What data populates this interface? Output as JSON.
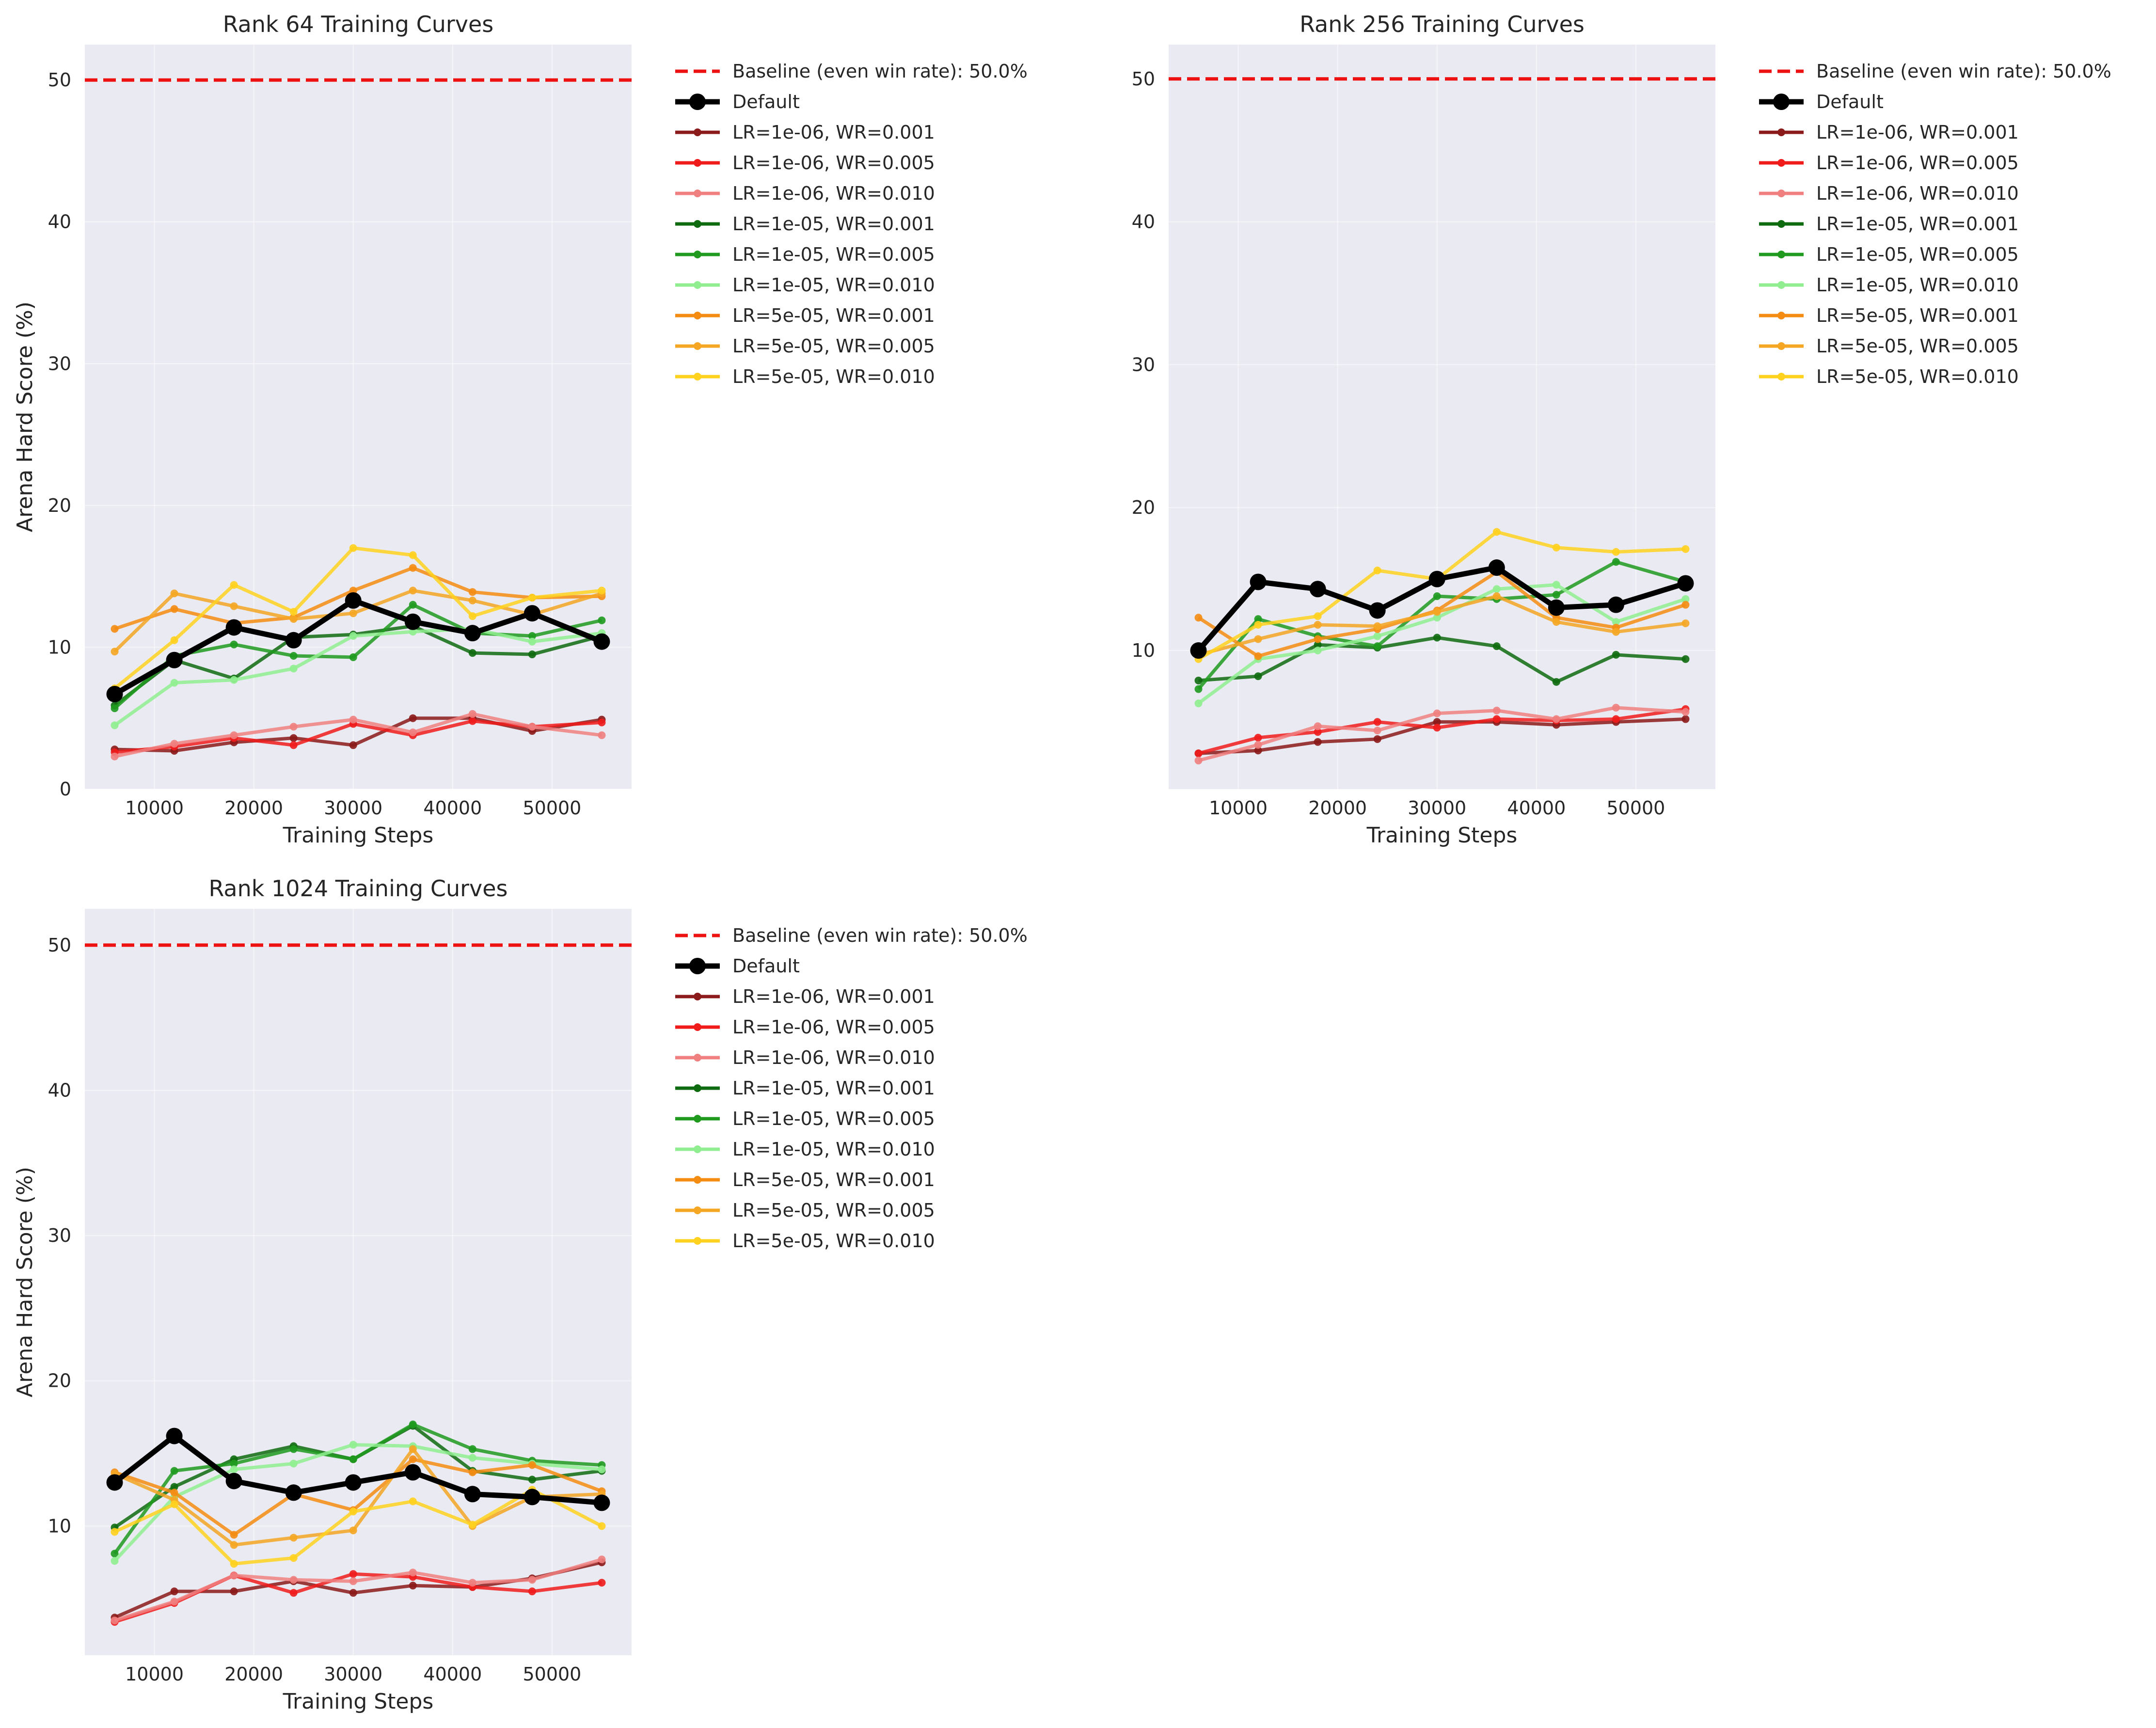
{
  "chart_data": [
    {
      "type": "line",
      "title": "Rank 64 Training Curves",
      "xlabel": "Training Steps",
      "ylabel": "Arena Hard Score (%)",
      "xlim": [
        3000,
        58000
      ],
      "ylim": [
        0,
        52.5
      ],
      "xticks": [
        10000,
        20000,
        30000,
        40000,
        50000
      ],
      "yticks": [
        0,
        10,
        20,
        30,
        40,
        50
      ],
      "grid": true,
      "legend_position": "outside-right",
      "x": [
        6000,
        12000,
        18000,
        24000,
        30000,
        36000,
        42000,
        48000,
        55000
      ],
      "baseline": {
        "name": "Baseline (even win rate): 50.0%",
        "value": 50,
        "color": "#ee1111"
      },
      "series": [
        {
          "name": "Default",
          "color": "#000000",
          "values": [
            6.7,
            9.1,
            11.4,
            10.5,
            13.3,
            11.8,
            11.0,
            12.4,
            10.4
          ]
        },
        {
          "name": "LR=1e-06, WR=0.001",
          "color": "#8b1a1a",
          "values": [
            2.8,
            2.7,
            3.3,
            3.6,
            3.1,
            5.0,
            5.0,
            4.1,
            4.9
          ]
        },
        {
          "name": "LR=1e-06, WR=0.005",
          "color": "#f01c1c",
          "values": [
            2.6,
            3.0,
            3.6,
            3.1,
            4.6,
            3.8,
            4.8,
            4.4,
            4.7
          ]
        },
        {
          "name": "LR=1e-06, WR=0.010",
          "color": "#f08080",
          "values": [
            2.3,
            3.2,
            3.8,
            4.4,
            4.9,
            4.0,
            5.3,
            4.4,
            3.8
          ]
        },
        {
          "name": "LR=1e-05, WR=0.001",
          "color": "#0f6b0f",
          "values": [
            5.9,
            9.1,
            7.8,
            10.7,
            10.9,
            11.5,
            9.6,
            9.5,
            10.8
          ]
        },
        {
          "name": "LR=1e-05, WR=0.005",
          "color": "#1f9a1f",
          "values": [
            5.7,
            9.4,
            10.2,
            9.4,
            9.3,
            13.0,
            11.0,
            10.8,
            11.9
          ]
        },
        {
          "name": "LR=1e-05, WR=0.010",
          "color": "#90ee90",
          "values": [
            4.5,
            7.5,
            7.7,
            8.5,
            10.8,
            11.1,
            11.3,
            10.4,
            11.0
          ]
        },
        {
          "name": "LR=5e-05, WR=0.001",
          "color": "#f48c12",
          "values": [
            11.3,
            12.7,
            11.7,
            12.1,
            14.0,
            15.6,
            13.9,
            13.5,
            13.6
          ]
        },
        {
          "name": "LR=5e-05, WR=0.005",
          "color": "#f5a623",
          "values": [
            9.7,
            13.8,
            12.9,
            12.0,
            12.4,
            14.0,
            13.3,
            12.3,
            13.8
          ]
        },
        {
          "name": "LR=5e-05, WR=0.010",
          "color": "#ffd21f",
          "values": [
            7.1,
            10.5,
            14.4,
            12.5,
            17.0,
            16.5,
            12.2,
            13.5,
            14.0
          ]
        }
      ]
    },
    {
      "type": "line",
      "title": "Rank 256 Training Curves",
      "xlabel": "Training Steps",
      "ylabel": "Arena Hard Score (%)",
      "xlim": [
        3000,
        58000
      ],
      "ylim": [
        0.3,
        52.4
      ],
      "xticks": [
        10000,
        20000,
        30000,
        40000,
        50000
      ],
      "yticks": [
        10,
        20,
        30,
        40,
        50
      ],
      "grid": true,
      "legend_position": "outside-right",
      "x": [
        6000,
        12000,
        18000,
        24000,
        30000,
        36000,
        42000,
        48000,
        55000
      ],
      "baseline": {
        "name": "Baseline (even win rate): 50.0%",
        "value": 50,
        "color": "#ee1111"
      },
      "series": [
        {
          "name": "Default",
          "color": "#000000",
          "values": [
            10.0,
            14.8,
            14.3,
            12.8,
            15.0,
            15.8,
            13.0,
            13.2,
            14.7
          ]
        },
        {
          "name": "LR=1e-06, WR=0.001",
          "color": "#8b1a1a",
          "values": [
            2.8,
            3.0,
            3.6,
            3.8,
            5.0,
            5.0,
            4.8,
            5.0,
            5.2
          ]
        },
        {
          "name": "LR=1e-06, WR=0.005",
          "color": "#f01c1c",
          "values": [
            2.8,
            3.9,
            4.3,
            5.0,
            4.6,
            5.2,
            5.1,
            5.2,
            5.9
          ]
        },
        {
          "name": "LR=1e-06, WR=0.010",
          "color": "#f08080",
          "values": [
            2.3,
            3.4,
            4.7,
            4.4,
            5.6,
            5.8,
            5.2,
            6.0,
            5.7
          ]
        },
        {
          "name": "LR=1e-05, WR=0.001",
          "color": "#0f6b0f",
          "values": [
            7.9,
            8.2,
            10.4,
            10.2,
            10.9,
            10.3,
            7.8,
            9.7,
            9.4
          ]
        },
        {
          "name": "LR=1e-05, WR=0.005",
          "color": "#1f9a1f",
          "values": [
            7.3,
            12.2,
            11.0,
            10.3,
            13.8,
            13.6,
            13.9,
            16.2,
            14.8
          ]
        },
        {
          "name": "LR=1e-05, WR=0.010",
          "color": "#90ee90",
          "values": [
            6.3,
            9.4,
            10.0,
            11.0,
            12.3,
            14.3,
            14.6,
            12.0,
            13.6
          ]
        },
        {
          "name": "LR=5e-05, WR=0.001",
          "color": "#f48c12",
          "values": [
            12.3,
            9.6,
            10.8,
            11.5,
            12.8,
            15.5,
            12.3,
            11.6,
            13.2
          ]
        },
        {
          "name": "LR=5e-05, WR=0.005",
          "color": "#f5a623",
          "values": [
            9.7,
            10.8,
            11.8,
            11.7,
            12.7,
            13.8,
            12.0,
            11.3,
            11.9
          ]
        },
        {
          "name": "LR=5e-05, WR=0.010",
          "color": "#ffd21f",
          "values": [
            9.4,
            11.8,
            12.4,
            15.6,
            15.0,
            18.3,
            17.2,
            16.9,
            17.1
          ]
        }
      ]
    },
    {
      "type": "line",
      "title": "Rank 1024 Training Curves",
      "xlabel": "Training Steps",
      "ylabel": "Arena Hard Score (%)",
      "xlim": [
        3000,
        58000
      ],
      "ylim": [
        1.1,
        52.5
      ],
      "xticks": [
        10000,
        20000,
        30000,
        40000,
        50000
      ],
      "yticks": [
        10,
        20,
        30,
        40,
        50
      ],
      "grid": true,
      "legend_position": "outside-right",
      "x": [
        6000,
        12000,
        18000,
        24000,
        30000,
        36000,
        42000,
        48000,
        55000
      ],
      "baseline": {
        "name": "Baseline (even win rate): 50.0%",
        "value": 50,
        "color": "#ee1111"
      },
      "series": [
        {
          "name": "Default",
          "color": "#000000",
          "values": [
            13.0,
            16.2,
            13.1,
            12.3,
            13.0,
            13.7,
            12.2,
            12.0,
            11.6
          ]
        },
        {
          "name": "LR=1e-06, WR=0.001",
          "color": "#8b1a1a",
          "values": [
            3.7,
            5.5,
            5.5,
            6.2,
            5.4,
            5.9,
            5.8,
            6.4,
            7.5
          ]
        },
        {
          "name": "LR=1e-06, WR=0.005",
          "color": "#f01c1c",
          "values": [
            3.4,
            4.7,
            6.6,
            5.4,
            6.7,
            6.5,
            5.8,
            5.5,
            6.1
          ]
        },
        {
          "name": "LR=1e-06, WR=0.010",
          "color": "#f08080",
          "values": [
            3.5,
            4.8,
            6.6,
            6.3,
            6.2,
            6.8,
            6.1,
            6.3,
            7.7
          ]
        },
        {
          "name": "LR=1e-05, WR=0.001",
          "color": "#0f6b0f",
          "values": [
            9.9,
            12.7,
            14.6,
            15.5,
            14.6,
            16.9,
            13.8,
            13.2,
            13.8
          ]
        },
        {
          "name": "LR=1e-05, WR=0.005",
          "color": "#1f9a1f",
          "values": [
            8.1,
            13.8,
            14.3,
            15.3,
            14.6,
            17.0,
            15.3,
            14.5,
            14.2
          ]
        },
        {
          "name": "LR=1e-05, WR=0.010",
          "color": "#90ee90",
          "values": [
            7.6,
            12.0,
            13.9,
            14.3,
            15.6,
            15.5,
            14.7,
            14.3,
            13.9
          ]
        },
        {
          "name": "LR=5e-05, WR=0.001",
          "color": "#f48c12",
          "values": [
            13.7,
            12.3,
            9.4,
            12.2,
            11.1,
            14.6,
            13.7,
            14.2,
            12.4
          ]
        },
        {
          "name": "LR=5e-05, WR=0.005",
          "color": "#f5a623",
          "values": [
            13.6,
            11.8,
            8.7,
            9.2,
            9.7,
            15.3,
            10.0,
            12.0,
            12.2
          ]
        },
        {
          "name": "LR=5e-05, WR=0.010",
          "color": "#ffd21f",
          "values": [
            9.6,
            11.5,
            7.4,
            7.8,
            11.0,
            11.7,
            10.1,
            12.5,
            10.0
          ]
        }
      ]
    }
  ]
}
